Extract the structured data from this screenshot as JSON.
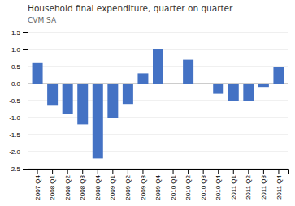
{
  "chart_data": {
    "type": "bar",
    "title": "Household final expenditure, quarter on quarter",
    "subtitle": "CVM SA",
    "categories": [
      "2007 Q4",
      "2008 Q1",
      "2008 Q2",
      "2008 Q3",
      "2008 Q4",
      "2009 Q1",
      "2009 Q2",
      "2009 Q3",
      "2009 Q4",
      "2010 Q1",
      "2010 Q2",
      "2010 Q3",
      "2010 Q4",
      "2011 Q1",
      "2011 Q2",
      "2011 Q3",
      "2011 Q4"
    ],
    "values": [
      0.6,
      -0.65,
      -0.9,
      -1.2,
      -2.2,
      -1.0,
      -0.6,
      0.3,
      1.0,
      0.0,
      0.7,
      0.0,
      -0.3,
      -0.5,
      -0.5,
      -0.1,
      0.5
    ],
    "color": "#4472C4",
    "ylim": [
      -2.5,
      1.5
    ],
    "yticks": [
      -2.5,
      {
        "value": -2,
        "label": "-2.0"
      },
      -1.5,
      {
        "value": -1,
        "label": "-1.0"
      },
      -0.5,
      {
        "value": 0,
        "label": "0.0"
      },
      0.5,
      {
        "value": 1,
        "label": "1.0"
      },
      1.5
    ],
    "grid": true
  }
}
